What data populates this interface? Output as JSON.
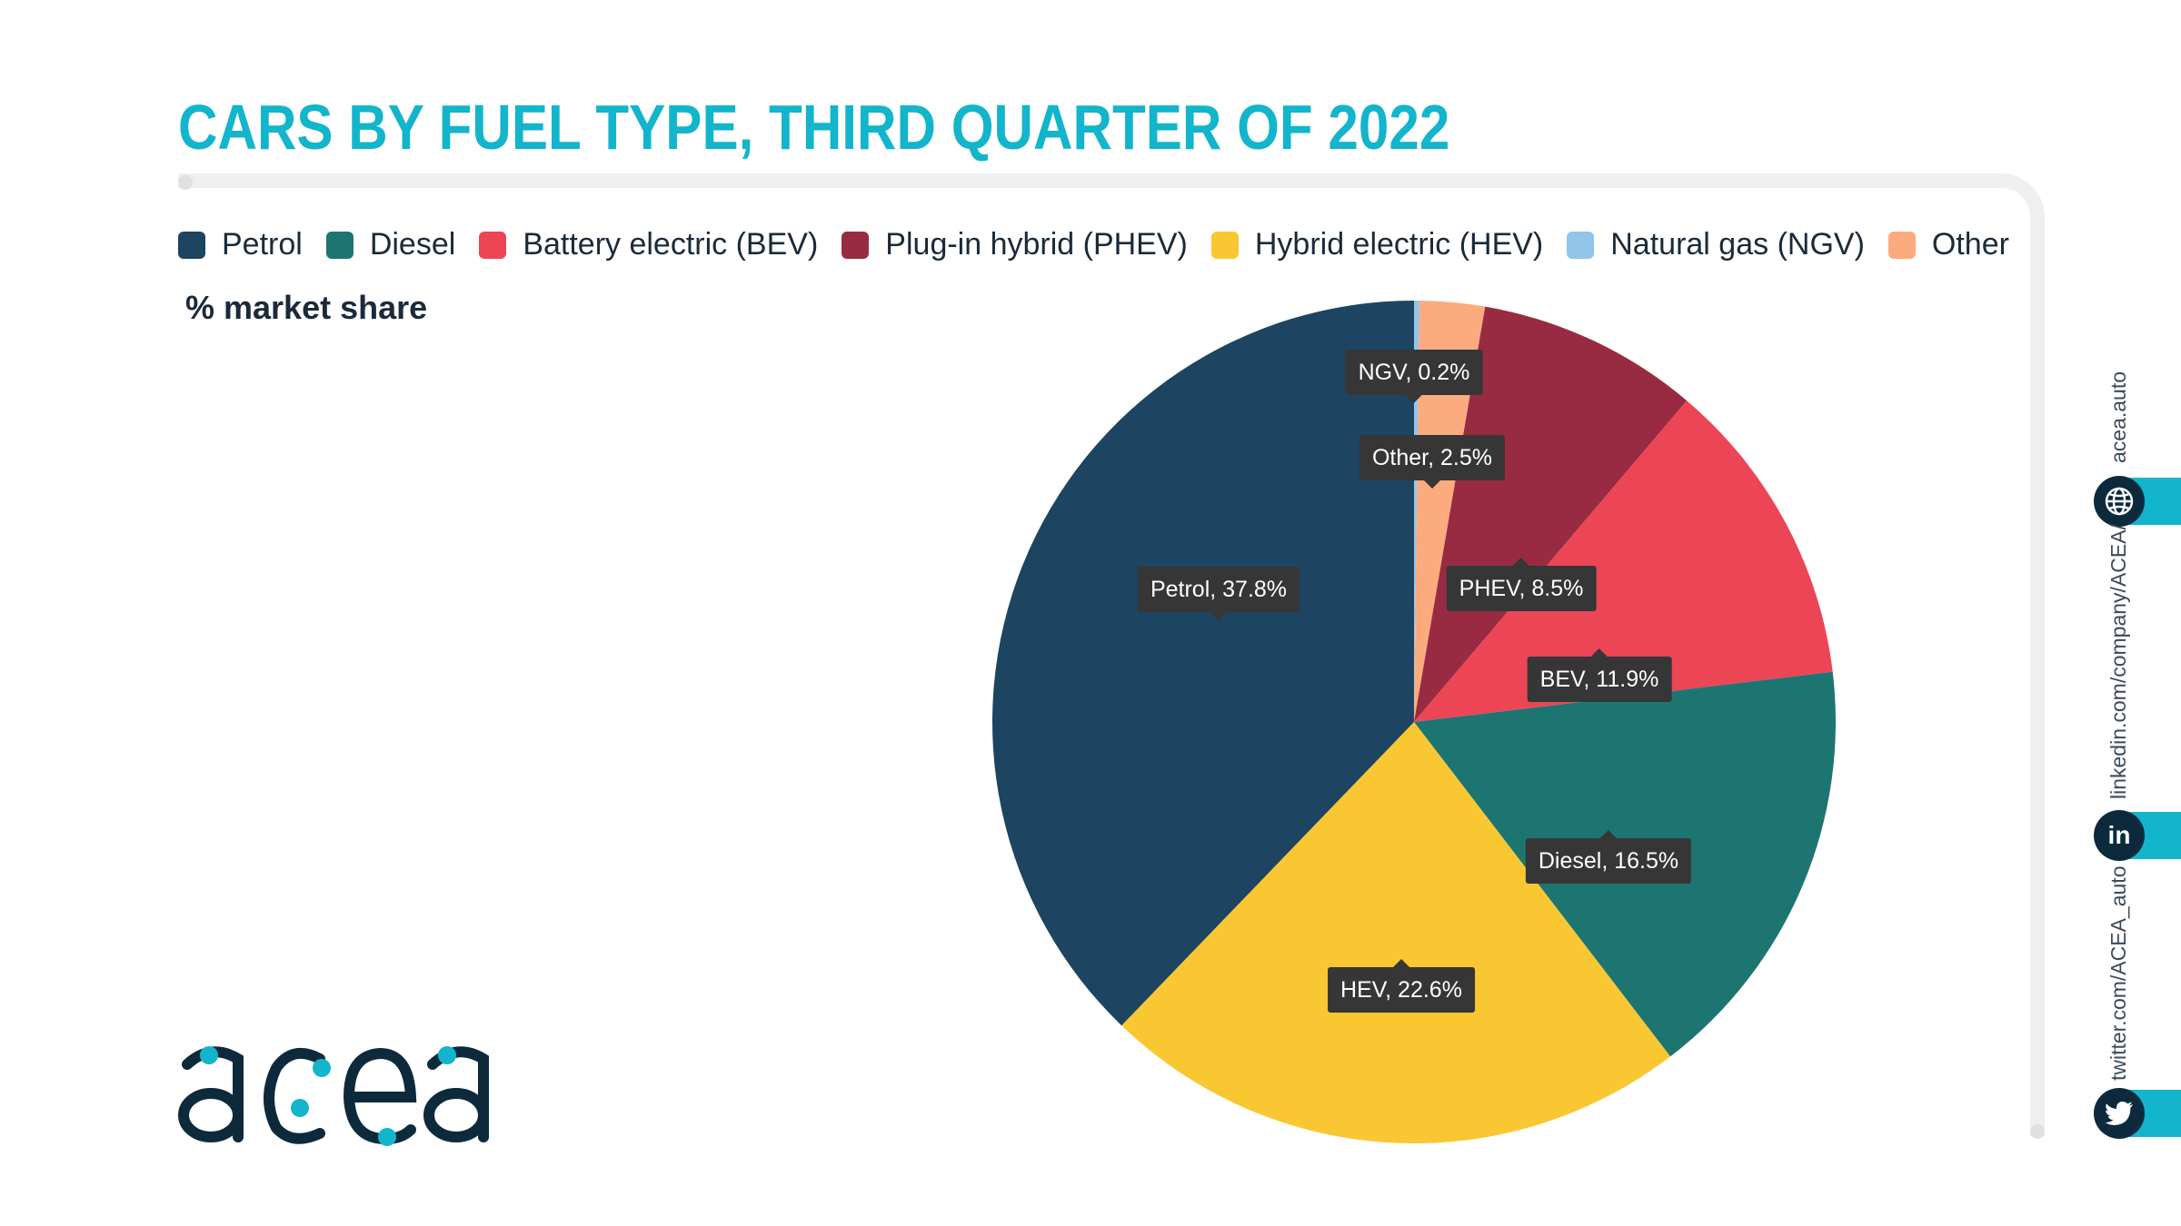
{
  "title": "CARS BY FUEL TYPE, THIRD QUARTER OF 2022",
  "subtitle": "% market share",
  "legend": [
    {
      "label": "Petrol",
      "color": "#1d4460"
    },
    {
      "label": "Diesel",
      "color": "#1d7572"
    },
    {
      "label": "Battery electric (BEV)",
      "color": "#ec4555"
    },
    {
      "label": "Plug-in hybrid (PHEV)",
      "color": "#982b42"
    },
    {
      "label": "Hybrid electric (HEV)",
      "color": "#f9c732"
    },
    {
      "label": "Natural gas (NGV)",
      "color": "#91c6ea"
    },
    {
      "label": "Other",
      "color": "#fcab7e"
    }
  ],
  "chart_data": {
    "type": "pie",
    "start": "12 o'clock",
    "direction": "clockwise",
    "slices": [
      {
        "label": "NGV, 0.2%",
        "short": "NGV",
        "value": 0.2,
        "color": "#91c6ea"
      },
      {
        "label": "Other, 2.5%",
        "short": "Other",
        "value": 2.5,
        "color": "#fcab7e"
      },
      {
        "label": "PHEV, 8.5%",
        "short": "PHEV",
        "value": 8.5,
        "color": "#982b42"
      },
      {
        "label": "BEV, 11.9%",
        "short": "BEV",
        "value": 11.9,
        "color": "#ec4555"
      },
      {
        "label": "Diesel, 16.5%",
        "short": "Diesel",
        "value": 16.5,
        "color": "#1d7572"
      },
      {
        "label": "HEV, 22.6%",
        "short": "HEV",
        "value": 22.6,
        "color": "#f9c732"
      },
      {
        "label": "Petrol, 37.8%",
        "short": "Petrol",
        "value": 37.8,
        "color": "#1d4460"
      }
    ]
  },
  "brand": {
    "logo_text": "acea",
    "accent": "#12b5cb",
    "dark": "#0d2a3d"
  },
  "social": {
    "web": "acea.auto",
    "linkedin": "linkedin.com/company/ACEA/",
    "twitter": "twitter.com/ACEA_auto",
    "web_icon": "globe-icon",
    "linkedin_icon": "linkedin-icon",
    "twitter_icon": "twitter-icon"
  }
}
